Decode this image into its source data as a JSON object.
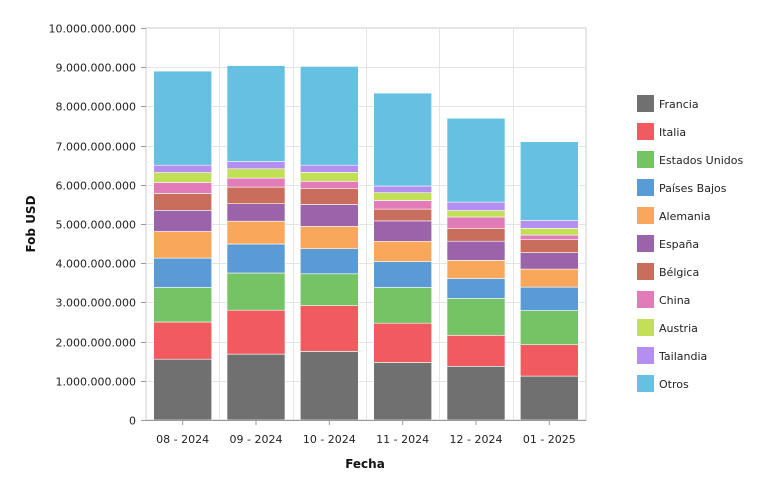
{
  "chart_data": {
    "type": "bar",
    "stacked": true,
    "xlabel": "Fecha",
    "ylabel": "Fob USD",
    "ylim": [
      0,
      10000000000
    ],
    "yticks": [
      0,
      1000000000,
      2000000000,
      3000000000,
      4000000000,
      5000000000,
      6000000000,
      7000000000,
      8000000000,
      9000000000,
      10000000000
    ],
    "ytick_labels": [
      "0",
      "1.000.000.000",
      "2.000.000.000",
      "3.000.000.000",
      "4.000.000.000",
      "5.000.000.000",
      "6.000.000.000",
      "7.000.000.000",
      "8.000.000.000",
      "9.000.000.000",
      "10.000.000.000"
    ],
    "grid": true,
    "legend_position": "right",
    "categories": [
      "08 - 2024",
      "09 - 2024",
      "10 - 2024",
      "11 - 2024",
      "12 - 2024",
      "01 - 2025"
    ],
    "series": [
      {
        "name": "Francia",
        "color": "#707070",
        "values": [
          1550000000,
          1680000000,
          1750000000,
          1470000000,
          1370000000,
          1120000000
        ]
      },
      {
        "name": "Italia",
        "color": "#f15a5f",
        "values": [
          950000000,
          1120000000,
          1170000000,
          1000000000,
          790000000,
          800000000
        ]
      },
      {
        "name": "Estados Unidos",
        "color": "#74c365",
        "values": [
          880000000,
          950000000,
          810000000,
          910000000,
          940000000,
          870000000
        ]
      },
      {
        "name": "Países Bajos",
        "color": "#5b9bd5",
        "values": [
          750000000,
          740000000,
          640000000,
          660000000,
          510000000,
          600000000
        ]
      },
      {
        "name": "Alemania",
        "color": "#f9a75a",
        "values": [
          680000000,
          580000000,
          570000000,
          520000000,
          460000000,
          460000000
        ]
      },
      {
        "name": "España",
        "color": "#9b63aa",
        "values": [
          540000000,
          450000000,
          560000000,
          520000000,
          490000000,
          420000000
        ]
      },
      {
        "name": "Bélgica",
        "color": "#c96e5c",
        "values": [
          430000000,
          420000000,
          400000000,
          300000000,
          330000000,
          330000000
        ]
      },
      {
        "name": "China",
        "color": "#e27cb8",
        "values": [
          280000000,
          230000000,
          190000000,
          220000000,
          290000000,
          120000000
        ]
      },
      {
        "name": "Austria",
        "color": "#c0e055",
        "values": [
          250000000,
          240000000,
          230000000,
          200000000,
          160000000,
          170000000
        ]
      },
      {
        "name": "Tailandia",
        "color": "#b48ef0",
        "values": [
          190000000,
          180000000,
          180000000,
          170000000,
          220000000,
          200000000
        ]
      },
      {
        "name": "Otros",
        "color": "#66c0e2",
        "values": [
          2400000000,
          2450000000,
          2520000000,
          2370000000,
          2140000000,
          2010000000
        ]
      }
    ]
  }
}
